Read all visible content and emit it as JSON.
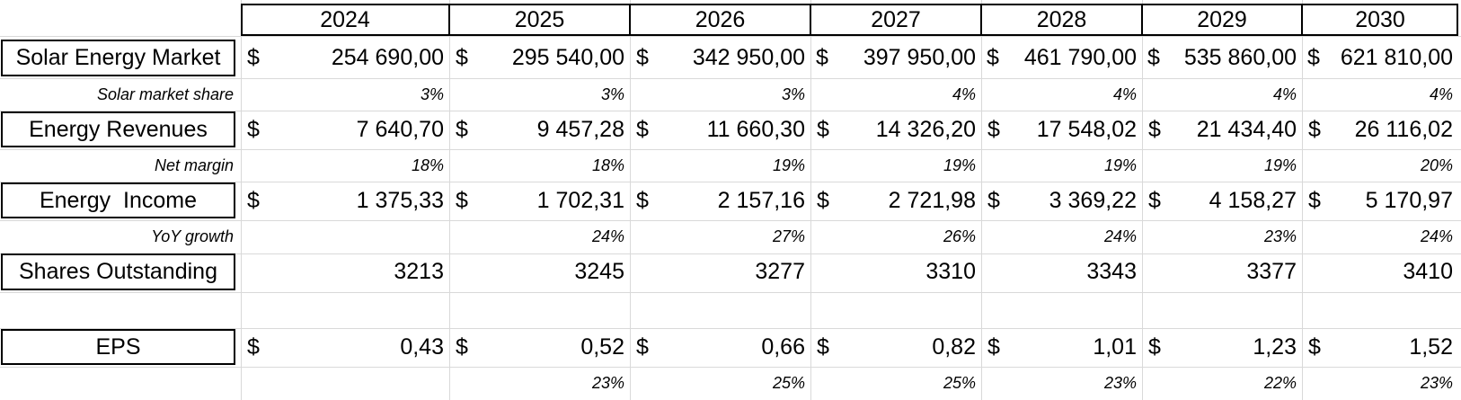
{
  "years": [
    "2024",
    "2025",
    "2026",
    "2027",
    "2028",
    "2029",
    "2030"
  ],
  "currency": "$",
  "rows": {
    "market": {
      "label": "Solar Energy Market",
      "values": [
        "254 690,00",
        "295 540,00",
        "342 950,00",
        "397 950,00",
        "461 790,00",
        "535 860,00",
        "621 810,00"
      ]
    },
    "market_share": {
      "label": "Solar market share",
      "values": [
        "3%",
        "3%",
        "3%",
        "4%",
        "4%",
        "4%",
        "4%"
      ]
    },
    "revenues": {
      "label": "Energy Revenues",
      "values": [
        "7 640,70",
        "9 457,28",
        "11 660,30",
        "14 326,20",
        "17 548,02",
        "21 434,40",
        "26 116,02"
      ]
    },
    "net_margin": {
      "label": "Net margin",
      "values": [
        "18%",
        "18%",
        "19%",
        "19%",
        "19%",
        "19%",
        "20%"
      ]
    },
    "income": {
      "label": "Energy  Income",
      "values": [
        "1 375,33",
        "1 702,31",
        "2 157,16",
        "2 721,98",
        "3 369,22",
        "4 158,27",
        "5 170,97"
      ]
    },
    "yoy_growth": {
      "label": "YoY growth",
      "values": [
        "",
        "24%",
        "27%",
        "26%",
        "24%",
        "23%",
        "24%"
      ]
    },
    "shares": {
      "label": "Shares Outstanding",
      "values": [
        "3213",
        "3245",
        "3277",
        "3310",
        "3343",
        "3377",
        "3410"
      ]
    },
    "eps": {
      "label": "EPS",
      "values": [
        "0,43",
        "0,52",
        "0,66",
        "0,82",
        "1,01",
        "1,23",
        "1,52"
      ]
    },
    "eps_growth": {
      "label": "",
      "values": [
        "",
        "23%",
        "25%",
        "25%",
        "23%",
        "22%",
        "23%"
      ]
    }
  }
}
